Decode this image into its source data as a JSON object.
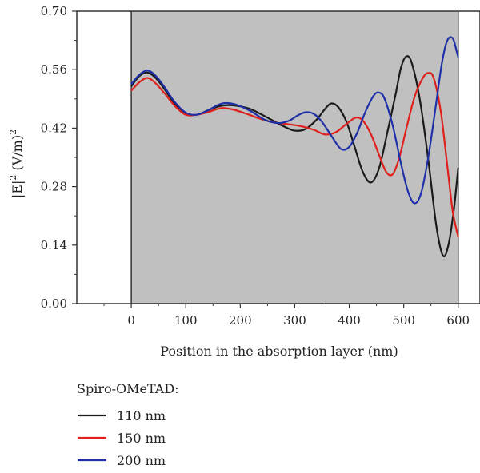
{
  "chart_data": {
    "type": "line",
    "xlabel": "Position in the absorption layer (nm)",
    "ylabel_main": "|E|",
    "ylabel_sup1": "2",
    "ylabel_unit": " (V/m)",
    "ylabel_sup2": "2",
    "xlim": [
      -100,
      640
    ],
    "ylim": [
      0,
      0.7
    ],
    "shaded_region": [
      0,
      600
    ],
    "shade_color": "#c0c0c0",
    "x_ticks": [
      "0",
      "100",
      "200",
      "300",
      "400",
      "500",
      "600"
    ],
    "y_ticks": [
      "0.00",
      "0.14",
      "0.28",
      "0.42",
      "0.56",
      "0.70"
    ],
    "legend_title": "Spiro-OMeTAD:",
    "grid": false,
    "series": [
      {
        "name": "110 nm",
        "color": "#1a1a1a",
        "points": [
          [
            0,
            0.52
          ],
          [
            15,
            0.545
          ],
          [
            30,
            0.553
          ],
          [
            45,
            0.54
          ],
          [
            60,
            0.515
          ],
          [
            80,
            0.478
          ],
          [
            100,
            0.455
          ],
          [
            120,
            0.452
          ],
          [
            140,
            0.462
          ],
          [
            160,
            0.472
          ],
          [
            180,
            0.475
          ],
          [
            200,
            0.472
          ],
          [
            220,
            0.465
          ],
          [
            240,
            0.452
          ],
          [
            260,
            0.438
          ],
          [
            280,
            0.424
          ],
          [
            300,
            0.414
          ],
          [
            320,
            0.418
          ],
          [
            340,
            0.44
          ],
          [
            355,
            0.465
          ],
          [
            367,
            0.479
          ],
          [
            380,
            0.47
          ],
          [
            395,
            0.435
          ],
          [
            410,
            0.375
          ],
          [
            425,
            0.315
          ],
          [
            440,
            0.29
          ],
          [
            455,
            0.325
          ],
          [
            470,
            0.41
          ],
          [
            485,
            0.5
          ],
          [
            495,
            0.565
          ],
          [
            505,
            0.592
          ],
          [
            515,
            0.575
          ],
          [
            530,
            0.485
          ],
          [
            545,
            0.345
          ],
          [
            560,
            0.185
          ],
          [
            572,
            0.115
          ],
          [
            582,
            0.14
          ],
          [
            592,
            0.225
          ],
          [
            600,
            0.325
          ]
        ]
      },
      {
        "name": "150 nm",
        "color": "#e0201c",
        "points": [
          [
            0,
            0.51
          ],
          [
            15,
            0.53
          ],
          [
            28,
            0.54
          ],
          [
            40,
            0.533
          ],
          [
            60,
            0.505
          ],
          [
            80,
            0.473
          ],
          [
            100,
            0.452
          ],
          [
            120,
            0.452
          ],
          [
            140,
            0.458
          ],
          [
            165,
            0.468
          ],
          [
            185,
            0.465
          ],
          [
            210,
            0.455
          ],
          [
            235,
            0.443
          ],
          [
            260,
            0.434
          ],
          [
            285,
            0.43
          ],
          [
            310,
            0.425
          ],
          [
            335,
            0.416
          ],
          [
            355,
            0.405
          ],
          [
            375,
            0.41
          ],
          [
            395,
            0.43
          ],
          [
            412,
            0.445
          ],
          [
            425,
            0.438
          ],
          [
            440,
            0.405
          ],
          [
            455,
            0.355
          ],
          [
            468,
            0.315
          ],
          [
            480,
            0.31
          ],
          [
            492,
            0.35
          ],
          [
            505,
            0.42
          ],
          [
            520,
            0.495
          ],
          [
            535,
            0.54
          ],
          [
            545,
            0.552
          ],
          [
            555,
            0.54
          ],
          [
            568,
            0.46
          ],
          [
            580,
            0.33
          ],
          [
            590,
            0.22
          ],
          [
            600,
            0.16
          ]
        ]
      },
      {
        "name": "200 nm",
        "color": "#1f2fa8",
        "points": [
          [
            0,
            0.525
          ],
          [
            15,
            0.548
          ],
          [
            30,
            0.558
          ],
          [
            45,
            0.545
          ],
          [
            60,
            0.52
          ],
          [
            80,
            0.482
          ],
          [
            100,
            0.457
          ],
          [
            120,
            0.452
          ],
          [
            140,
            0.462
          ],
          [
            160,
            0.476
          ],
          [
            175,
            0.48
          ],
          [
            195,
            0.475
          ],
          [
            220,
            0.46
          ],
          [
            245,
            0.44
          ],
          [
            270,
            0.432
          ],
          [
            290,
            0.438
          ],
          [
            305,
            0.45
          ],
          [
            320,
            0.458
          ],
          [
            335,
            0.454
          ],
          [
            350,
            0.435
          ],
          [
            368,
            0.4
          ],
          [
            385,
            0.37
          ],
          [
            400,
            0.375
          ],
          [
            415,
            0.41
          ],
          [
            430,
            0.46
          ],
          [
            445,
            0.498
          ],
          [
            455,
            0.505
          ],
          [
            465,
            0.49
          ],
          [
            480,
            0.425
          ],
          [
            495,
            0.335
          ],
          [
            508,
            0.268
          ],
          [
            520,
            0.24
          ],
          [
            532,
            0.265
          ],
          [
            545,
            0.35
          ],
          [
            558,
            0.465
          ],
          [
            570,
            0.575
          ],
          [
            580,
            0.63
          ],
          [
            590,
            0.635
          ],
          [
            597,
            0.605
          ],
          [
            600,
            0.59
          ]
        ]
      }
    ]
  }
}
